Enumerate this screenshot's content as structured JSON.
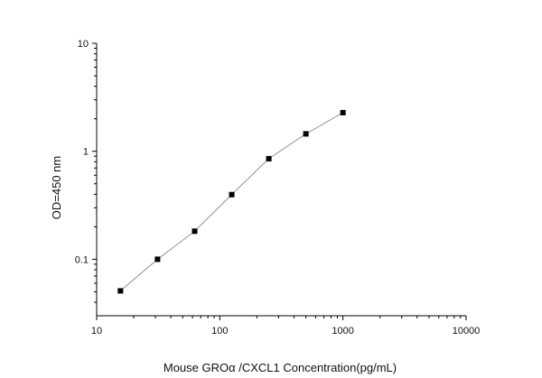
{
  "chart_data": {
    "type": "scatter",
    "title": "",
    "xlabel": "Mouse GROα /CXCL1  Concentration(pg/mL)",
    "ylabel": "OD=450 nm",
    "xscale": "log",
    "yscale": "log",
    "xlim": [
      10,
      10000
    ],
    "ylim": [
      0.03,
      10
    ],
    "grid": false,
    "legend": "none",
    "marker": "filled-square",
    "line": "connecting-line",
    "colors": {
      "marker": "#000000",
      "line": "#8a8a8a",
      "axis": "#000000"
    },
    "x_ticks": [
      {
        "value": 10,
        "label": "10"
      },
      {
        "value": 100,
        "label": "100"
      },
      {
        "value": 1000,
        "label": "1000"
      },
      {
        "value": 10000,
        "label": "10000"
      }
    ],
    "y_ticks": [
      {
        "value": 0.1,
        "label": "0.1"
      },
      {
        "value": 1,
        "label": "1"
      },
      {
        "value": 10,
        "label": "10"
      }
    ],
    "series": [
      {
        "x": [
          15.6,
          31.2,
          62.5,
          125,
          250,
          500,
          1000
        ],
        "y": [
          0.051,
          0.1,
          0.182,
          0.397,
          0.854,
          1.45,
          2.28
        ]
      }
    ]
  }
}
